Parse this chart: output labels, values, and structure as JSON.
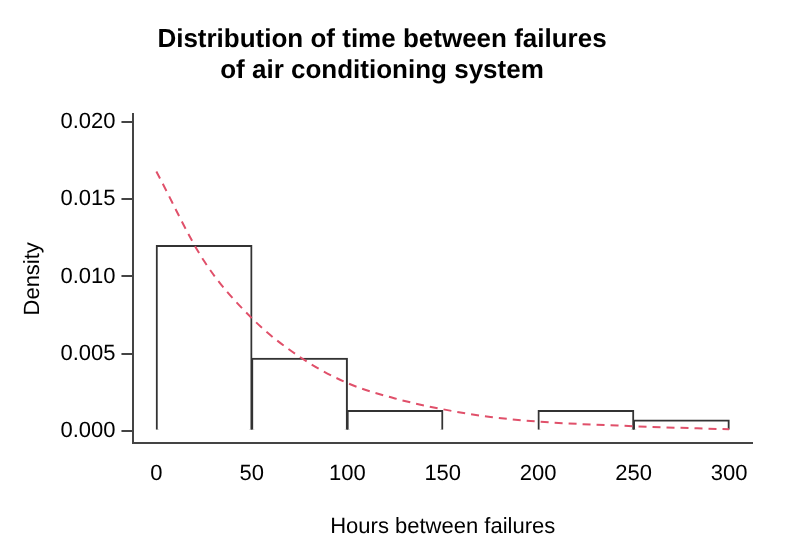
{
  "chart_data": {
    "type": "histogram",
    "title": "Distribution of time between failures\nof air conditioning system",
    "xlabel": "Hours between failures",
    "ylabel": "Density",
    "bins": [
      0,
      50,
      100,
      150,
      200,
      250,
      300
    ],
    "values": [
      0.012,
      0.0047,
      0.0013,
      0,
      0.0013,
      0.0007
    ],
    "color": "#ffffff",
    "series": [
      {
        "type": "line",
        "color": "#e0506a",
        "line_style": "dashed",
        "x": [
          0,
          25,
          50,
          75,
          100,
          125,
          150,
          175,
          200,
          250,
          300
        ],
        "values": [
          0.0168,
          0.011,
          0.0073,
          0.0048,
          0.0031,
          0.0021,
          0.0014,
          0.0009,
          0.0006,
          0.0003,
          0.0001
        ]
      }
    ],
    "xlim": [
      -12,
      312
    ],
    "xticks": [
      0,
      50,
      100,
      150,
      200,
      250,
      300
    ],
    "ylim": [
      -0.0008,
      0.0205
    ],
    "yticks": [
      {
        "value": 0,
        "label": "0.000"
      },
      0.005,
      {
        "value": 0.01,
        "label": "0.010"
      },
      0.015,
      {
        "value": 0.02,
        "label": "0.020"
      }
    ],
    "grid": false,
    "legend": false,
    "marker": "none"
  }
}
